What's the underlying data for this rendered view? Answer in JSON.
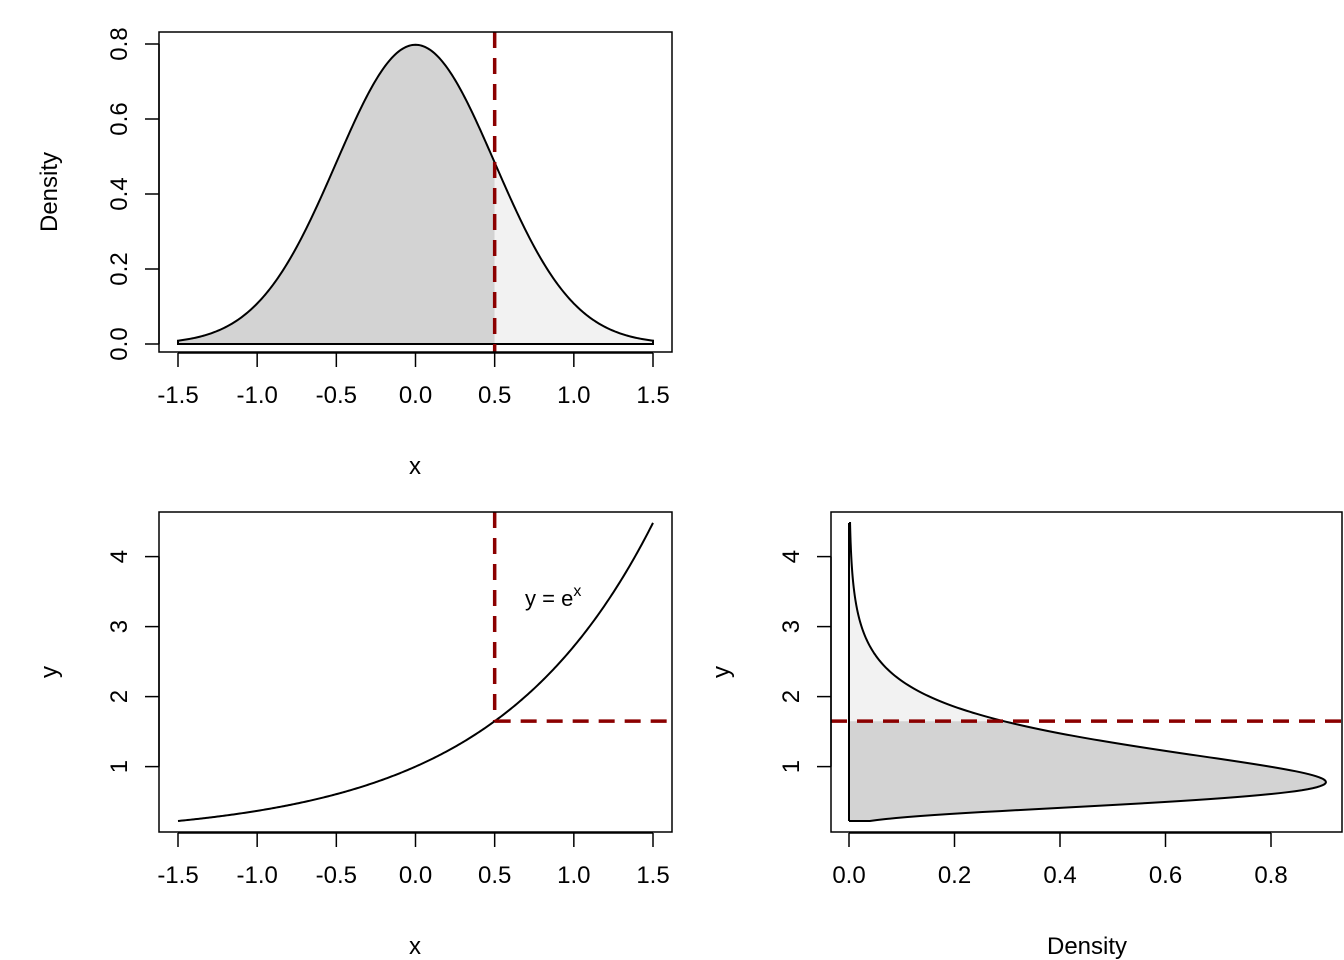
{
  "colors": {
    "fill_below": "#d3d3d3",
    "fill_above": "#f2f2f2",
    "cutoff": "#8b0000",
    "curve": "#000000"
  },
  "chart_data": [
    {
      "id": "density-x",
      "type": "area",
      "xlabel": "x",
      "ylabel": "Density",
      "xlim": [
        -1.5,
        1.5
      ],
      "ylim": [
        0,
        0.8
      ],
      "xticks": [
        "-1.5",
        "-1.0",
        "-0.5",
        "0.0",
        "0.5",
        "1.0",
        "1.5"
      ],
      "yticks": [
        "0.0",
        "0.2",
        "0.4",
        "0.6",
        "0.8"
      ],
      "curve": "normal density, mean 0, sd 0.5",
      "x": [
        -1.5,
        -1.25,
        -1.0,
        -0.75,
        -0.5,
        -0.25,
        0.0,
        0.25,
        0.5,
        0.75,
        1.0,
        1.25,
        1.5
      ],
      "y": [
        0.009,
        0.035,
        0.108,
        0.259,
        0.484,
        0.704,
        0.798,
        0.704,
        0.484,
        0.259,
        0.108,
        0.035,
        0.009
      ],
      "cutoff_x": 0.5
    },
    {
      "id": "transform",
      "type": "line",
      "xlabel": "x",
      "ylabel": "y",
      "xlim": [
        -1.5,
        1.5
      ],
      "ylim": [
        0.223,
        4.48
      ],
      "xticks": [
        "-1.5",
        "-1.0",
        "-0.5",
        "0.0",
        "0.5",
        "1.0",
        "1.5"
      ],
      "yticks": [
        "1",
        "2",
        "3",
        "4"
      ],
      "annotation": "y = e",
      "annotation_sup": "x",
      "x": [
        -1.5,
        -1.0,
        -0.5,
        0.0,
        0.5,
        1.0,
        1.5
      ],
      "y": [
        0.223,
        0.368,
        0.607,
        1.0,
        1.649,
        2.718,
        4.482
      ],
      "cutoff_x": 0.5,
      "cutoff_y": 1.649
    },
    {
      "id": "density-y",
      "type": "area",
      "xlabel": "Density",
      "ylabel": "y",
      "xlim": [
        0,
        0.9
      ],
      "ylim": [
        0.223,
        4.48
      ],
      "xticks": [
        "0.0",
        "0.2",
        "0.4",
        "0.6",
        "0.8"
      ],
      "yticks": [
        "1",
        "2",
        "3",
        "4"
      ],
      "curve": "lognormal density, meanlog 0, sdlog 0.5, plotted sideways",
      "y": [
        0.223,
        0.4,
        0.6,
        0.78,
        1.0,
        1.3,
        1.649,
        2.0,
        2.5,
        3.0,
        3.5,
        4.0,
        4.48
      ],
      "density": [
        0.04,
        0.43,
        0.81,
        0.9,
        0.8,
        0.51,
        0.29,
        0.17,
        0.08,
        0.04,
        0.02,
        0.01,
        0.0
      ],
      "cutoff_y": 1.649
    }
  ]
}
